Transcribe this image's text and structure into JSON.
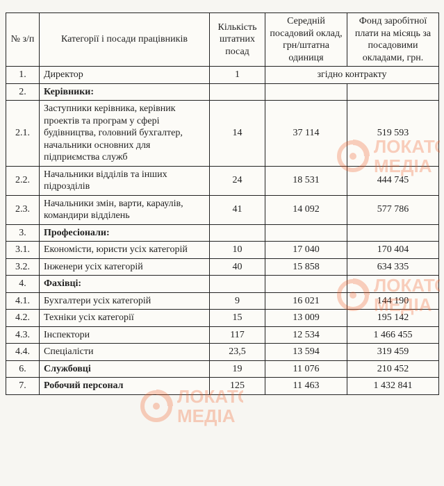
{
  "colors": {
    "border": "#222222",
    "bg": "#f7f6f2",
    "watermark": "#f15a22"
  },
  "typography": {
    "font_family": "Times New Roman",
    "base_size_pt": 11
  },
  "watermark": {
    "line1": "ЛОКАТОР",
    "line2": "МЕДІА"
  },
  "headers": {
    "c0": "№ з/п",
    "c1": "Категорії і посади працівників",
    "c2": "Кількість штатних посад",
    "c3": "Середній посадовий оклад, грн/штатна одиниця",
    "c4": "Фонд заробітної плати на місяць за посадовими окладами, грн."
  },
  "contract_note": "згідно контракту",
  "rows": [
    {
      "n": "1.",
      "name": "Директор",
      "count": "1",
      "merged_note": true
    },
    {
      "n": "2.",
      "name": "Керівники:",
      "bold": true
    },
    {
      "n": "2.1.",
      "name": "Заступники керівника, керівник проектів та програм у сфері будівництва, головний бухгалтер, начальники основних для підприємства служб",
      "count": "14",
      "salary": "37 114",
      "fund": "519 593"
    },
    {
      "n": "2.2.",
      "name": "Начальники відділів та інших підрозділів",
      "count": "24",
      "salary": "18 531",
      "fund": "444 745"
    },
    {
      "n": "2.3.",
      "name": "Начальники змін, варти, караулів, командири відділень",
      "count": "41",
      "salary": "14 092",
      "fund": "577 786"
    },
    {
      "n": "3.",
      "name": "Професіонали:",
      "bold": true
    },
    {
      "n": "3.1.",
      "name": "Економісти, юристи усіх категорій",
      "count": "10",
      "salary": "17 040",
      "fund": "170 404"
    },
    {
      "n": "3.2.",
      "name": "Інженери усіх категорій",
      "count": "40",
      "salary": "15 858",
      "fund": "634 335"
    },
    {
      "n": "4.",
      "name": "Фахівці:",
      "bold": true
    },
    {
      "n": "4.1.",
      "name": "Бухгалтери усіх категорій",
      "count": "9",
      "salary": "16 021",
      "fund": "144 190"
    },
    {
      "n": "4.2.",
      "name": "Техніки усіх категорії",
      "count": "15",
      "salary": "13 009",
      "fund": "195 142"
    },
    {
      "n": "4.3.",
      "name": "Інспектори",
      "count": "117",
      "salary": "12 534",
      "fund": "1 466 455"
    },
    {
      "n": "4.4.",
      "name": "Спеціалісти",
      "count": "23,5",
      "salary": "13 594",
      "fund": "319 459"
    },
    {
      "n": "6.",
      "name": "Службовці",
      "bold": true,
      "count": "19",
      "salary": "11 076",
      "fund": "210 452"
    },
    {
      "n": "7.",
      "name": "Робочий персонал",
      "bold": true,
      "count": "125",
      "salary": "11 463",
      "fund": "1 432 841"
    }
  ]
}
